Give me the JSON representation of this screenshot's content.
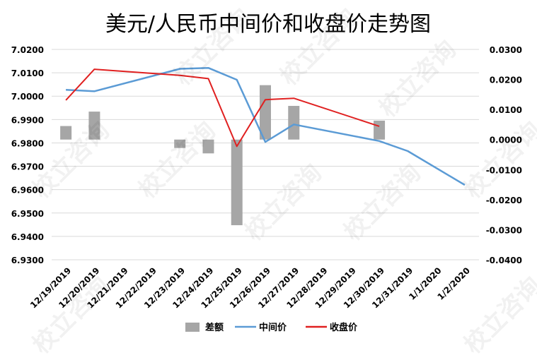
{
  "watermark_text": "校立咨询",
  "chart_data": {
    "type": "bar+line",
    "title": "美元/人民币中间价和收盘价走势图",
    "categories": [
      "12/19/2019",
      "12/20/2019",
      "12/21/2019",
      "12/22/2019",
      "12/23/2019",
      "12/24/2019",
      "12/25/2019",
      "12/26/2019",
      "12/27/2019",
      "12/28/2019",
      "12/29/2019",
      "12/30/2019",
      "12/31/2019",
      "1/1/2020",
      "1/2/2020"
    ],
    "left_axis": {
      "min": 6.93,
      "max": 7.02,
      "ticks": [
        "7.0200",
        "7.0100",
        "7.0000",
        "6.9900",
        "6.9800",
        "6.9700",
        "6.9600",
        "6.9500",
        "6.9400",
        "6.9300"
      ]
    },
    "right_axis": {
      "min": -0.04,
      "max": 0.03,
      "ticks": [
        "0.0300",
        "0.0200",
        "0.0100",
        "0.0000",
        "-0.0100",
        "-0.0200",
        "-0.0300",
        "-0.0400"
      ]
    },
    "series": [
      {
        "name": "差额",
        "type": "bar",
        "axis": "right",
        "color": "#a6a6a6",
        "points": [
          {
            "i": 0,
            "v": 0.0045
          },
          {
            "i": 1,
            "v": 0.0093
          },
          {
            "i": 4,
            "v": -0.0028
          },
          {
            "i": 5,
            "v": -0.0046
          },
          {
            "i": 6,
            "v": -0.0285
          },
          {
            "i": 7,
            "v": 0.0181
          },
          {
            "i": 8,
            "v": 0.0112
          },
          {
            "i": 11,
            "v": 0.0063
          }
        ]
      },
      {
        "name": "中间价",
        "type": "line",
        "axis": "left",
        "color": "#5b9bd5",
        "points": [
          {
            "i": 0,
            "v": 7.0027
          },
          {
            "i": 1,
            "v": 7.0021
          },
          {
            "i": 4,
            "v": 7.0117
          },
          {
            "i": 5,
            "v": 7.0121
          },
          {
            "i": 6,
            "v": 7.007
          },
          {
            "i": 7,
            "v": 6.9804
          },
          {
            "i": 8,
            "v": 6.9879
          },
          {
            "i": 11,
            "v": 6.9808
          },
          {
            "i": 12,
            "v": 6.9765
          },
          {
            "i": 14,
            "v": 6.962
          }
        ]
      },
      {
        "name": "收盘价",
        "type": "line",
        "axis": "left",
        "color": "#e02020",
        "points": [
          {
            "i": 0,
            "v": 6.9983
          },
          {
            "i": 1,
            "v": 7.0115
          },
          {
            "i": 4,
            "v": 7.0089
          },
          {
            "i": 5,
            "v": 7.0075
          },
          {
            "i": 6,
            "v": 6.9785
          },
          {
            "i": 7,
            "v": 6.9985
          },
          {
            "i": 8,
            "v": 6.9991
          },
          {
            "i": 11,
            "v": 6.9871
          }
        ]
      }
    ],
    "grid": "horizontal",
    "legend_position": "bottom"
  }
}
